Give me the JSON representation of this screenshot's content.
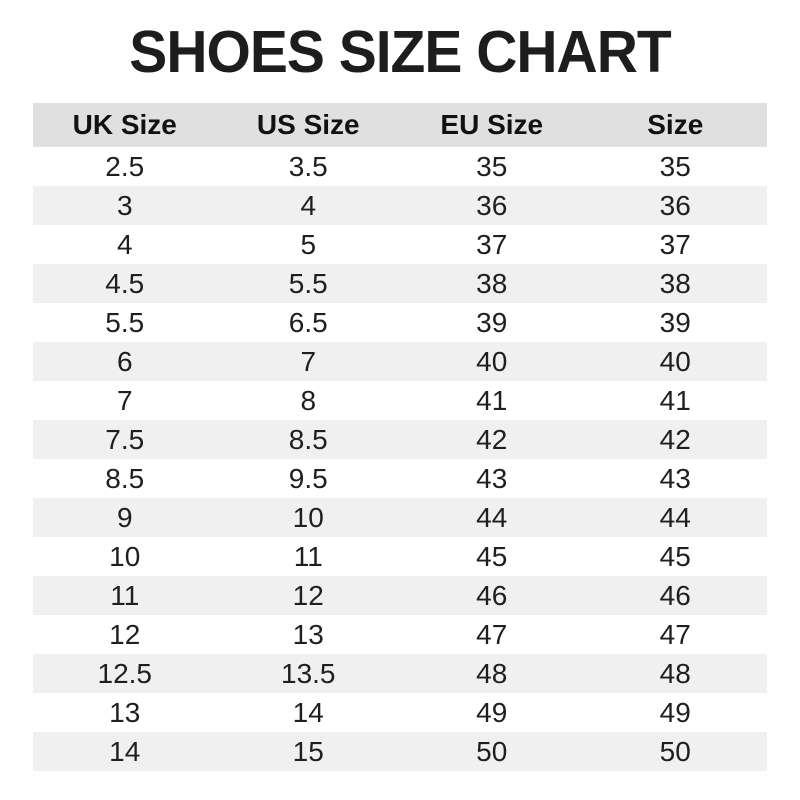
{
  "title": "SHOES SIZE CHART",
  "colors": {
    "header_bg": "#e0e0e0",
    "stripe_bg": "#f0f0f0",
    "row_bg": "#ffffff",
    "text": "#1f1f1f",
    "title_text": "#1d1d1d"
  },
  "chart_data": {
    "type": "table",
    "title": "SHOES SIZE CHART",
    "columns": [
      "UK Size",
      "US Size",
      "EU Size",
      "Size"
    ],
    "rows": [
      [
        "2.5",
        "3.5",
        "35",
        "35"
      ],
      [
        "3",
        "4",
        "36",
        "36"
      ],
      [
        "4",
        "5",
        "37",
        "37"
      ],
      [
        "4.5",
        "5.5",
        "38",
        "38"
      ],
      [
        "5.5",
        "6.5",
        "39",
        "39"
      ],
      [
        "6",
        "7",
        "40",
        "40"
      ],
      [
        "7",
        "8",
        "41",
        "41"
      ],
      [
        "7.5",
        "8.5",
        "42",
        "42"
      ],
      [
        "8.5",
        "9.5",
        "43",
        "43"
      ],
      [
        "9",
        "10",
        "44",
        "44"
      ],
      [
        "10",
        "11",
        "45",
        "45"
      ],
      [
        "11",
        "12",
        "46",
        "46"
      ],
      [
        "12",
        "13",
        "47",
        "47"
      ],
      [
        "12.5",
        "13.5",
        "48",
        "48"
      ],
      [
        "13",
        "14",
        "49",
        "49"
      ],
      [
        "14",
        "15",
        "50",
        "50"
      ]
    ],
    "layout": {
      "striped": true,
      "stripe_start": "second_row",
      "header_background": "#e0e0e0",
      "stripe_background": "#f0f0f0"
    }
  }
}
